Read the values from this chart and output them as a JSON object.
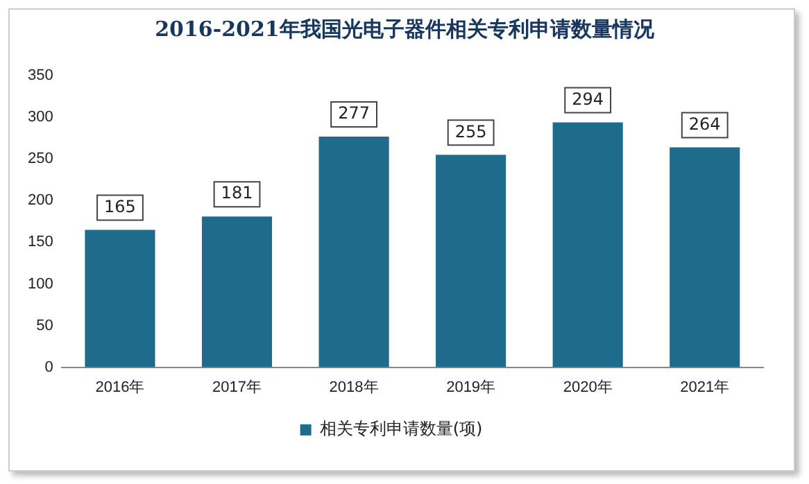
{
  "chart_data": {
    "type": "bar",
    "title": "2016-2021年我国光电子器件相关专利申请数量情况",
    "categories": [
      "2016年",
      "2017年",
      "2018年",
      "2019年",
      "2020年",
      "2021年"
    ],
    "series": [
      {
        "name": "相关专利申请数量(项)",
        "color": "#1f6b8c",
        "values": [
          165,
          181,
          277,
          255,
          294,
          264
        ]
      }
    ],
    "ylim": [
      0,
      350
    ],
    "yticks": [
      0,
      50,
      100,
      150,
      200,
      250,
      300,
      350
    ],
    "grid": false,
    "legend": "bottom",
    "data_labels": true
  }
}
